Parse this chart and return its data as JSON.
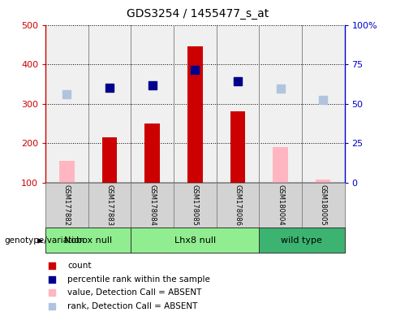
{
  "title": "GDS3254 / 1455477_s_at",
  "samples": [
    "GSM177882",
    "GSM177883",
    "GSM178084",
    "GSM178085",
    "GSM178086",
    "GSM180004",
    "GSM180005"
  ],
  "count_values": [
    null,
    215,
    250,
    445,
    280,
    null,
    null
  ],
  "count_absent_values": [
    155,
    null,
    null,
    null,
    null,
    190,
    108
  ],
  "percentile_values": [
    null,
    340,
    347,
    385,
    357,
    null,
    null
  ],
  "percentile_absent_values": [
    325,
    null,
    null,
    null,
    null,
    338,
    310
  ],
  "ylim_left": [
    100,
    500
  ],
  "ylim_right": [
    0,
    100
  ],
  "yticks_left": [
    100,
    200,
    300,
    400,
    500
  ],
  "yticks_right": [
    0,
    25,
    50,
    75,
    100
  ],
  "ytick_labels_right": [
    "0",
    "25",
    "50",
    "75",
    "100%"
  ],
  "group_configs": [
    {
      "label": "Nobox null",
      "indices": [
        0,
        1
      ],
      "color": "#90EE90"
    },
    {
      "label": "Lhx8 null",
      "indices": [
        2,
        3,
        4
      ],
      "color": "#90EE90"
    },
    {
      "label": "wild type",
      "indices": [
        5,
        6
      ],
      "color": "#3CB371"
    }
  ],
  "bar_color_present": "#CC0000",
  "bar_color_absent": "#FFB6C1",
  "dot_color_present": "#00008B",
  "dot_color_absent": "#B0C4DE",
  "axis_color_left": "#CC0000",
  "axis_color_right": "#0000CC",
  "plot_bg_color": "#F0F0F0",
  "bar_width": 0.35,
  "dot_size": 55
}
